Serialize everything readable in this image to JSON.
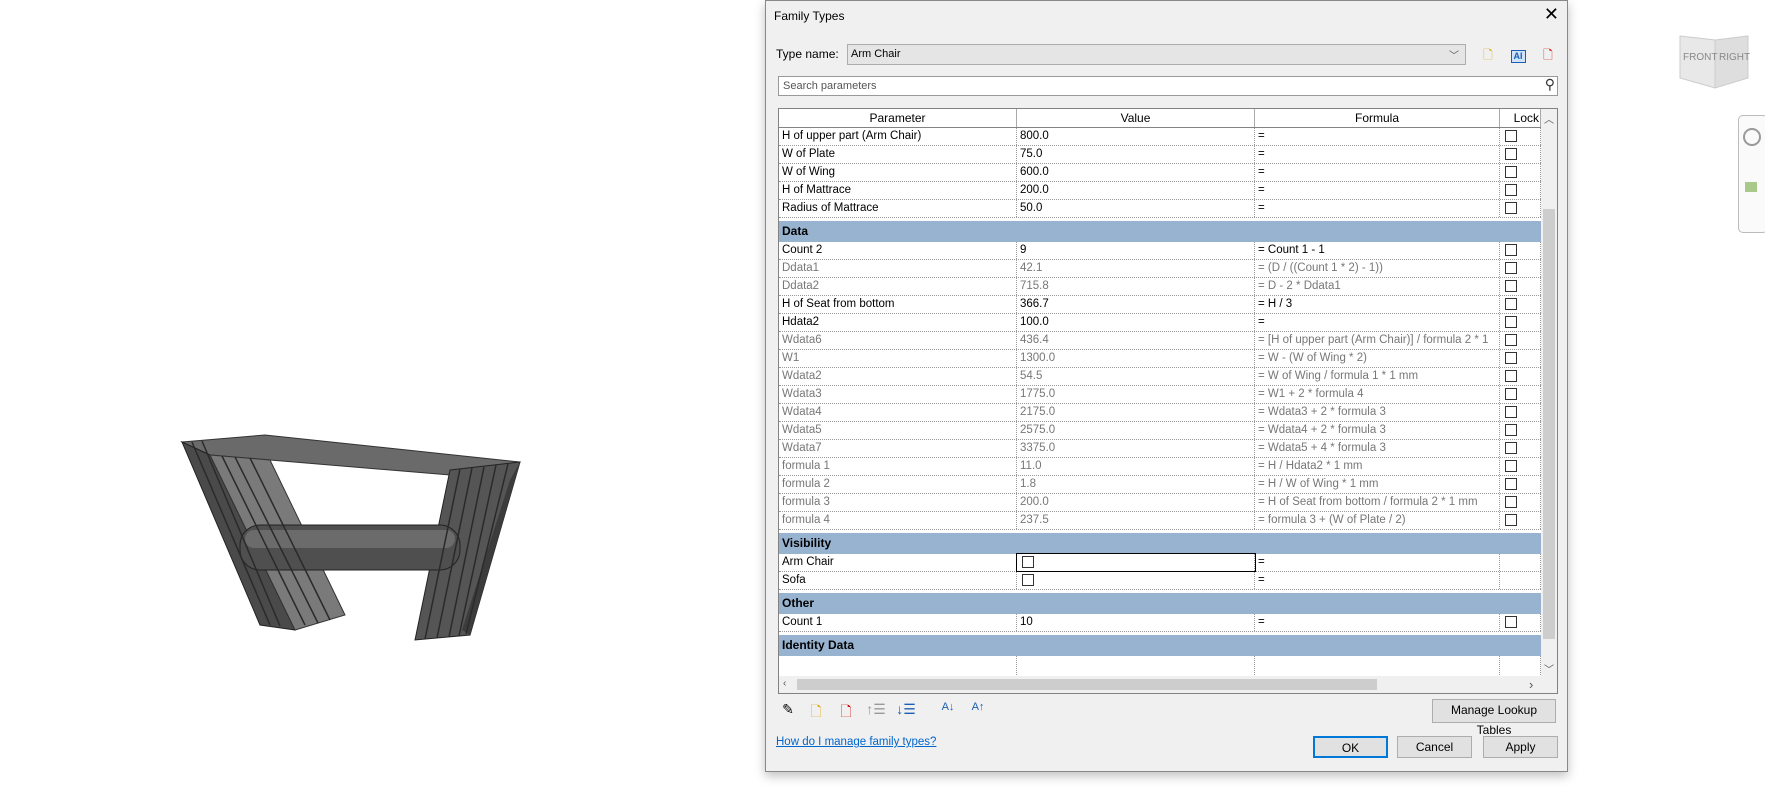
{
  "viewcube": {
    "front": "FRONT",
    "right": "RIGHT"
  },
  "dialog": {
    "title": "Family Types",
    "type_name_label": "Type name:",
    "type_name_value": "Arm Chair",
    "search_placeholder": "Search parameters",
    "columns": [
      "Parameter",
      "Value",
      "Formula",
      "Lock"
    ],
    "rows_top": [
      {
        "p": "H of upper part (Arm Chair)",
        "v": "800.0",
        "f": "=",
        "lock": true,
        "dim": false
      },
      {
        "p": "W of Plate",
        "v": "75.0",
        "f": "=",
        "lock": true,
        "dim": false
      },
      {
        "p": "W of Wing",
        "v": "600.0",
        "f": "=",
        "lock": true,
        "dim": false
      },
      {
        "p": "H of Mattrace",
        "v": "200.0",
        "f": "=",
        "lock": true,
        "dim": false
      },
      {
        "p": "Radius of Mattrace",
        "v": "50.0",
        "f": "=",
        "lock": true,
        "dim": false
      }
    ],
    "groups": [
      {
        "name": "Data",
        "rows": [
          {
            "p": "Count 2",
            "v": "9",
            "f": "= Count 1 - 1",
            "lock": true,
            "dim": false
          },
          {
            "p": "Ddata1",
            "v": "42.1",
            "f": "= (D / ((Count 1 * 2) - 1))",
            "lock": true,
            "dim": true
          },
          {
            "p": "Ddata2",
            "v": "715.8",
            "f": "= D - 2 * Ddata1",
            "lock": true,
            "dim": true
          },
          {
            "p": "H of Seat from bottom",
            "v": "366.7",
            "f": "= H / 3",
            "lock": true,
            "dim": false
          },
          {
            "p": "Hdata2",
            "v": "100.0",
            "f": "=",
            "lock": true,
            "dim": false
          },
          {
            "p": "Wdata6",
            "v": "436.4",
            "f": "= [H of upper part (Arm Chair)] / formula 2 * 1",
            "lock": true,
            "dim": true
          },
          {
            "p": "W1",
            "v": "1300.0",
            "f": "= W - (W of Wing * 2)",
            "lock": true,
            "dim": true
          },
          {
            "p": "Wdata2",
            "v": "54.5",
            "f": "= W of Wing / formula 1 * 1 mm",
            "lock": true,
            "dim": true
          },
          {
            "p": "Wdata3",
            "v": "1775.0",
            "f": "= W1 + 2 * formula 4",
            "lock": true,
            "dim": true
          },
          {
            "p": "Wdata4",
            "v": "2175.0",
            "f": "= Wdata3 + 2 * formula 3",
            "lock": true,
            "dim": true
          },
          {
            "p": "Wdata5",
            "v": "2575.0",
            "f": "= Wdata4 + 2 * formula 3",
            "lock": true,
            "dim": true
          },
          {
            "p": "Wdata7",
            "v": "3375.0",
            "f": "= Wdata5 + 4 * formula 3",
            "lock": true,
            "dim": true
          },
          {
            "p": "formula 1",
            "v": "11.0",
            "f": "= H / Hdata2 * 1 mm",
            "lock": true,
            "dim": true
          },
          {
            "p": "formula 2",
            "v": "1.8",
            "f": "= H / W of Wing * 1 mm",
            "lock": true,
            "dim": true
          },
          {
            "p": "formula 3",
            "v": "200.0",
            "f": "= H of Seat from bottom / formula 2 * 1 mm",
            "lock": true,
            "dim": true
          },
          {
            "p": "formula 4",
            "v": "237.5",
            "f": "= formula 3 + (W of Plate / 2)",
            "lock": true,
            "dim": true
          }
        ]
      },
      {
        "name": "Visibility",
        "rows": [
          {
            "p": "Arm Chair",
            "v": "",
            "checkbox": true,
            "f": "=",
            "lock": false,
            "dim": false,
            "selected": true
          },
          {
            "p": "Sofa",
            "v": "",
            "checkbox": true,
            "f": "=",
            "lock": false,
            "dim": false
          }
        ]
      },
      {
        "name": "Other",
        "rows": [
          {
            "p": "Count 1",
            "v": "10",
            "f": "=",
            "lock": true,
            "dim": false
          }
        ]
      },
      {
        "name": "Identity Data",
        "rows": []
      }
    ],
    "manage_lookup": "Manage Lookup Tables",
    "help_link": "How do I manage family types?",
    "ok": "OK",
    "cancel": "Cancel",
    "apply": "Apply"
  }
}
